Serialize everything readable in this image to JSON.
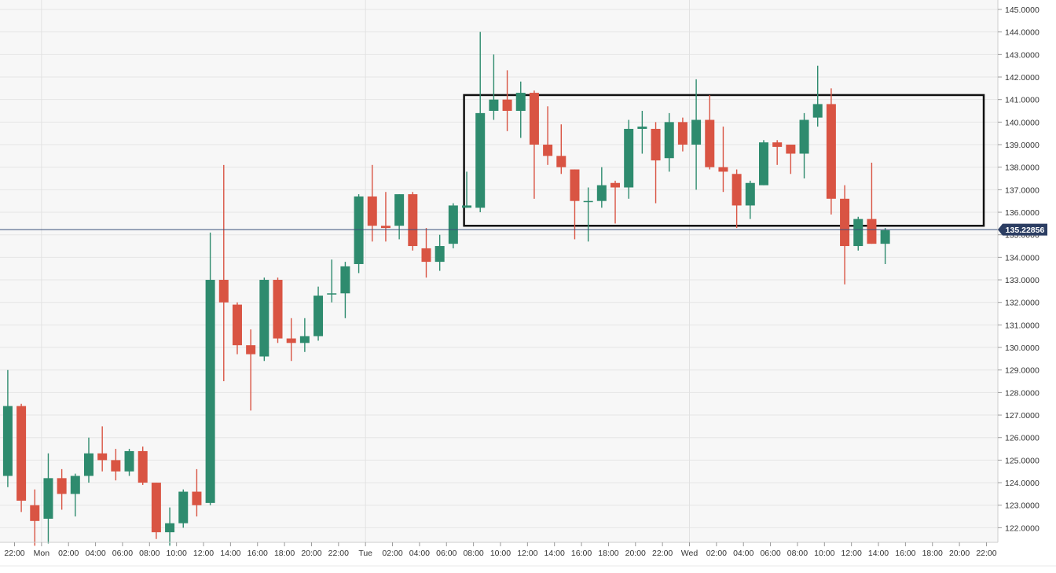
{
  "chart_data": {
    "type": "candlestick",
    "title": "",
    "xlabel": "",
    "ylabel": "",
    "ylim": [
      121.3,
      145.2
    ],
    "grid": true,
    "x_ticks": [
      "22:00",
      "Mon",
      "02:00",
      "04:00",
      "06:00",
      "08:00",
      "10:00",
      "12:00",
      "14:00",
      "16:00",
      "18:00",
      "20:00",
      "22:00",
      "Tue",
      "02:00",
      "04:00",
      "06:00",
      "08:00",
      "10:00",
      "12:00",
      "14:00",
      "16:00",
      "18:00",
      "20:00",
      "22:00",
      "Wed",
      "02:00",
      "04:00",
      "06:00",
      "08:00",
      "10:00",
      "12:00",
      "14:00",
      "16:00",
      "18:00",
      "20:00",
      "22:00"
    ],
    "y_ticks": [
      "122.0000",
      "123.0000",
      "124.0000",
      "125.0000",
      "126.0000",
      "127.0000",
      "128.0000",
      "129.0000",
      "130.0000",
      "131.0000",
      "132.0000",
      "133.0000",
      "134.0000",
      "135.0000",
      "136.0000",
      "137.0000",
      "138.0000",
      "139.0000",
      "140.0000",
      "141.0000",
      "142.0000",
      "143.0000",
      "144.0000",
      "145.0000"
    ],
    "x_unit_hours": "hours since the first labelled 22:00 tick",
    "candles": [
      {
        "t": -0.5,
        "o": 124.3,
        "h": 129.0,
        "l": 123.8,
        "c": 127.4
      },
      {
        "t": 0.5,
        "o": 127.4,
        "h": 127.5,
        "l": 122.7,
        "c": 123.2
      },
      {
        "t": 1.5,
        "o": 123.0,
        "h": 123.7,
        "l": 121.2,
        "c": 122.3
      },
      {
        "t": 2.5,
        "o": 122.4,
        "h": 125.3,
        "l": 121.3,
        "c": 124.2
      },
      {
        "t": 3.5,
        "o": 124.2,
        "h": 124.6,
        "l": 122.8,
        "c": 123.5
      },
      {
        "t": 4.5,
        "o": 123.5,
        "h": 124.4,
        "l": 122.5,
        "c": 124.3
      },
      {
        "t": 5.5,
        "o": 124.3,
        "h": 126.0,
        "l": 124.0,
        "c": 125.3
      },
      {
        "t": 6.5,
        "o": 125.3,
        "h": 126.5,
        "l": 124.5,
        "c": 125.0
      },
      {
        "t": 7.5,
        "o": 125.0,
        "h": 125.5,
        "l": 124.1,
        "c": 124.5
      },
      {
        "t": 8.5,
        "o": 124.5,
        "h": 125.5,
        "l": 124.3,
        "c": 125.4
      },
      {
        "t": 9.5,
        "o": 125.4,
        "h": 125.6,
        "l": 123.9,
        "c": 124.0
      },
      {
        "t": 10.5,
        "o": 124.0,
        "h": 124.0,
        "l": 121.5,
        "c": 121.8
      },
      {
        "t": 11.5,
        "o": 121.8,
        "h": 122.9,
        "l": 121.2,
        "c": 122.2
      },
      {
        "t": 12.5,
        "o": 122.2,
        "h": 123.7,
        "l": 122.0,
        "c": 123.6
      },
      {
        "t": 13.5,
        "o": 123.6,
        "h": 124.6,
        "l": 122.5,
        "c": 123.0
      },
      {
        "t": 14.5,
        "o": 123.1,
        "h": 135.1,
        "l": 123.0,
        "c": 133.0
      },
      {
        "t": 15.5,
        "o": 133.0,
        "h": 138.1,
        "l": 128.5,
        "c": 132.0
      },
      {
        "t": 16.5,
        "o": 131.9,
        "h": 132.0,
        "l": 129.7,
        "c": 130.1
      },
      {
        "t": 17.5,
        "o": 130.1,
        "h": 130.8,
        "l": 127.2,
        "c": 129.7
      },
      {
        "t": 18.5,
        "o": 129.6,
        "h": 133.1,
        "l": 129.4,
        "c": 133.0
      },
      {
        "t": 19.5,
        "o": 133.0,
        "h": 133.1,
        "l": 130.2,
        "c": 130.4
      },
      {
        "t": 20.5,
        "o": 130.4,
        "h": 131.3,
        "l": 129.4,
        "c": 130.2
      },
      {
        "t": 21.5,
        "o": 130.2,
        "h": 131.3,
        "l": 129.8,
        "c": 130.5
      },
      {
        "t": 22.5,
        "o": 130.5,
        "h": 132.7,
        "l": 130.3,
        "c": 132.3
      },
      {
        "t": 23.5,
        "o": 132.4,
        "h": 133.9,
        "l": 132.0,
        "c": 132.4
      },
      {
        "t": 24.5,
        "o": 132.4,
        "h": 133.8,
        "l": 131.3,
        "c": 133.6
      },
      {
        "t": 25.5,
        "o": 133.7,
        "h": 136.8,
        "l": 133.3,
        "c": 136.7
      },
      {
        "t": 26.5,
        "o": 136.7,
        "h": 138.1,
        "l": 134.7,
        "c": 135.4
      },
      {
        "t": 27.5,
        "o": 135.4,
        "h": 136.9,
        "l": 134.7,
        "c": 135.3
      },
      {
        "t": 28.5,
        "o": 135.4,
        "h": 136.8,
        "l": 134.8,
        "c": 136.8
      },
      {
        "t": 29.5,
        "o": 136.8,
        "h": 136.9,
        "l": 134.3,
        "c": 134.5
      },
      {
        "t": 30.5,
        "o": 134.4,
        "h": 135.3,
        "l": 133.1,
        "c": 133.8
      },
      {
        "t": 31.5,
        "o": 133.8,
        "h": 135.0,
        "l": 133.4,
        "c": 134.5
      },
      {
        "t": 32.5,
        "o": 134.6,
        "h": 136.4,
        "l": 134.4,
        "c": 136.3
      },
      {
        "t": 33.5,
        "o": 136.2,
        "h": 137.8,
        "l": 136.2,
        "c": 136.3
      },
      {
        "t": 34.5,
        "o": 136.2,
        "h": 144.0,
        "l": 136.0,
        "c": 140.4
      },
      {
        "t": 35.5,
        "o": 140.5,
        "h": 143.0,
        "l": 140.1,
        "c": 141.0
      },
      {
        "t": 36.5,
        "o": 141.0,
        "h": 142.3,
        "l": 139.6,
        "c": 140.5
      },
      {
        "t": 37.5,
        "o": 140.5,
        "h": 141.8,
        "l": 139.3,
        "c": 141.3
      },
      {
        "t": 38.5,
        "o": 141.3,
        "h": 141.4,
        "l": 136.6,
        "c": 139.0
      },
      {
        "t": 39.5,
        "o": 139.0,
        "h": 140.7,
        "l": 138.1,
        "c": 138.5
      },
      {
        "t": 40.5,
        "o": 138.5,
        "h": 139.9,
        "l": 137.7,
        "c": 138.0
      },
      {
        "t": 41.5,
        "o": 137.9,
        "h": 137.9,
        "l": 134.8,
        "c": 136.5
      },
      {
        "t": 42.5,
        "o": 136.5,
        "h": 137.1,
        "l": 134.7,
        "c": 136.5
      },
      {
        "t": 43.5,
        "o": 136.5,
        "h": 138.0,
        "l": 136.2,
        "c": 137.2
      },
      {
        "t": 44.5,
        "o": 137.3,
        "h": 137.4,
        "l": 135.5,
        "c": 137.1
      },
      {
        "t": 45.5,
        "o": 137.1,
        "h": 140.1,
        "l": 136.6,
        "c": 139.7
      },
      {
        "t": 46.5,
        "o": 139.7,
        "h": 140.5,
        "l": 138.6,
        "c": 139.8
      },
      {
        "t": 47.5,
        "o": 139.7,
        "h": 140.0,
        "l": 136.4,
        "c": 138.3
      },
      {
        "t": 48.5,
        "o": 138.4,
        "h": 140.4,
        "l": 137.8,
        "c": 140.0
      },
      {
        "t": 49.5,
        "o": 140.0,
        "h": 140.2,
        "l": 138.7,
        "c": 139.0
      },
      {
        "t": 50.5,
        "o": 139.0,
        "h": 141.9,
        "l": 137.0,
        "c": 140.1
      },
      {
        "t": 51.5,
        "o": 140.1,
        "h": 141.2,
        "l": 137.9,
        "c": 138.0
      },
      {
        "t": 52.5,
        "o": 138.0,
        "h": 139.8,
        "l": 136.9,
        "c": 137.8
      },
      {
        "t": 53.5,
        "o": 137.7,
        "h": 137.9,
        "l": 135.3,
        "c": 136.3
      },
      {
        "t": 54.5,
        "o": 136.3,
        "h": 137.4,
        "l": 135.7,
        "c": 137.3
      },
      {
        "t": 55.5,
        "o": 137.2,
        "h": 139.2,
        "l": 137.2,
        "c": 139.1
      },
      {
        "t": 56.5,
        "o": 139.1,
        "h": 139.2,
        "l": 138.1,
        "c": 138.9
      },
      {
        "t": 57.5,
        "o": 139.0,
        "h": 139.0,
        "l": 137.7,
        "c": 138.6
      },
      {
        "t": 58.5,
        "o": 138.6,
        "h": 140.4,
        "l": 137.5,
        "c": 140.1
      },
      {
        "t": 59.5,
        "o": 140.2,
        "h": 142.5,
        "l": 139.8,
        "c": 140.8
      },
      {
        "t": 60.5,
        "o": 140.8,
        "h": 141.5,
        "l": 135.9,
        "c": 136.6
      },
      {
        "t": 61.5,
        "o": 136.6,
        "h": 137.2,
        "l": 132.8,
        "c": 134.5
      },
      {
        "t": 62.5,
        "o": 134.5,
        "h": 135.8,
        "l": 134.3,
        "c": 135.7
      },
      {
        "t": 63.5,
        "o": 135.7,
        "h": 138.2,
        "l": 134.6,
        "c": 134.6
      },
      {
        "t": 64.5,
        "o": 134.6,
        "h": 135.3,
        "l": 133.7,
        "c": 135.2
      }
    ],
    "colors": {
      "up": "#2e8b6e",
      "down": "#d95443",
      "grid": "#e6e6e6",
      "background": "#f7f7f7",
      "price_line": "#3a4f7a",
      "box": "#111111"
    },
    "current_price": {
      "value": 135.22856,
      "label": "135.22856"
    },
    "annotations": [
      {
        "type": "rectangle",
        "x0": 33.3,
        "x1": 71.8,
        "y0": 135.4,
        "y1": 141.2
      }
    ]
  }
}
